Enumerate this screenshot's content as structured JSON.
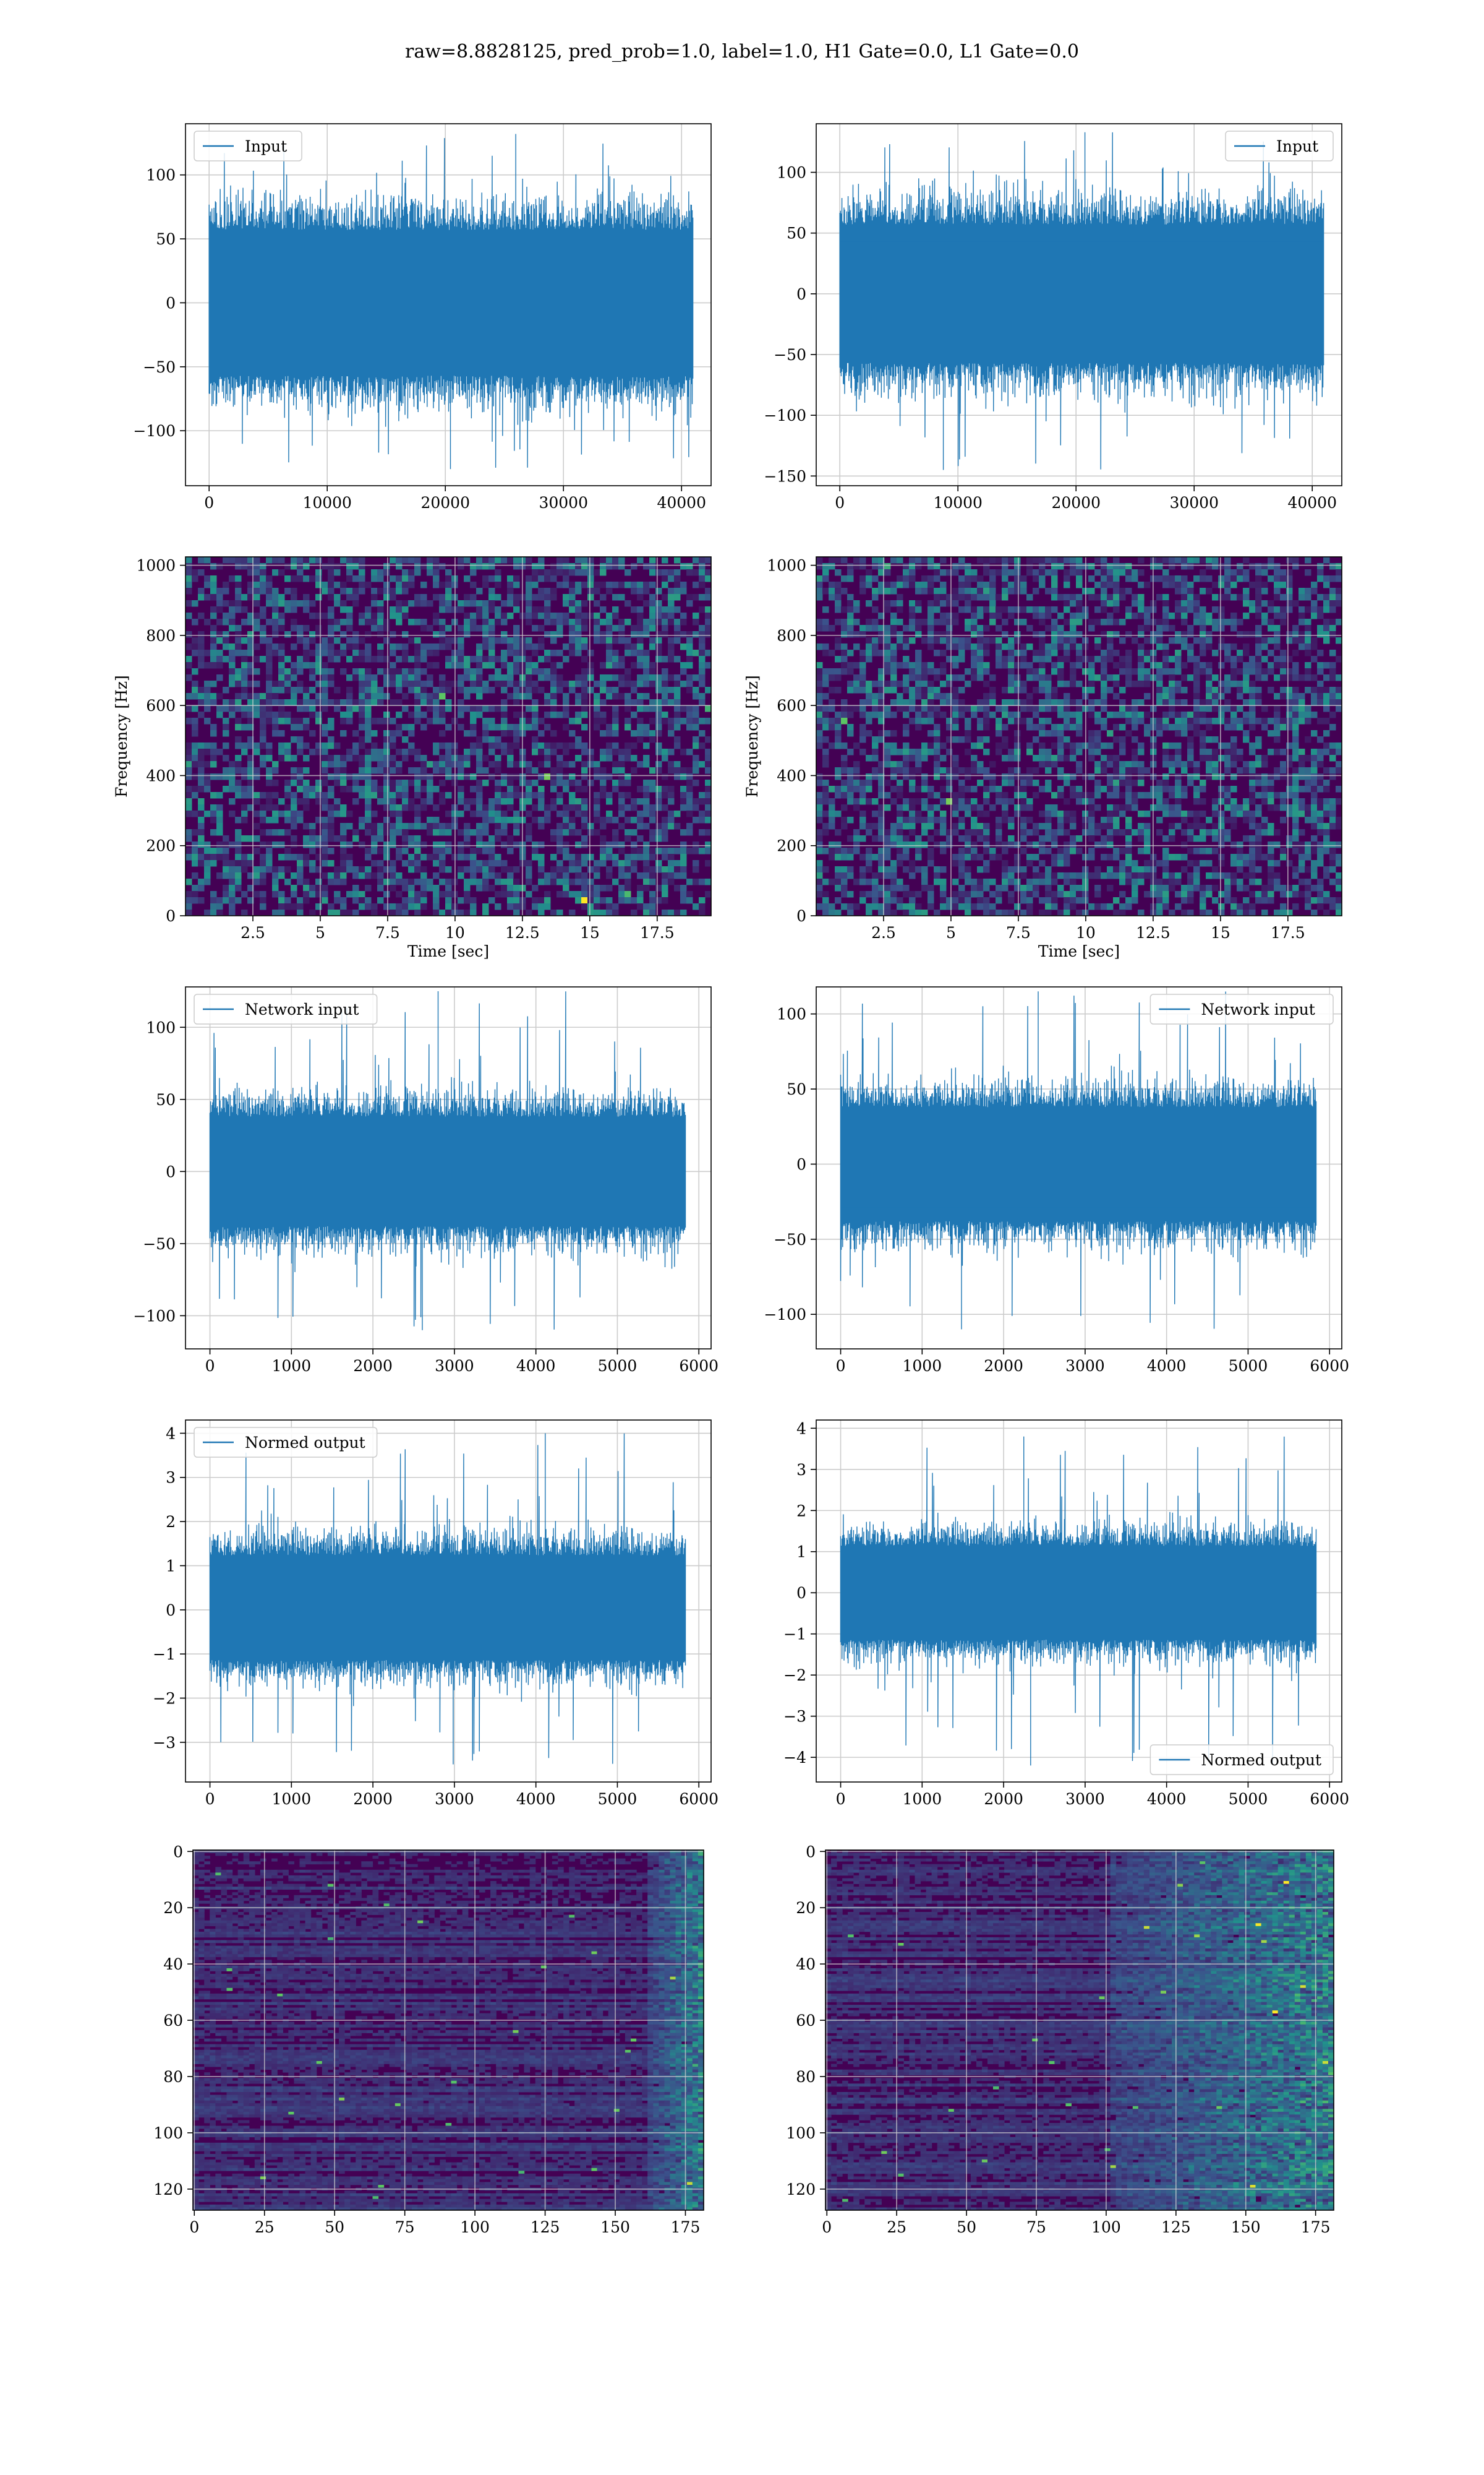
{
  "suptitle": "raw=8.8828125, pred_prob=1.0, label=1.0, H1 Gate=0.0, L1 Gate=0.0",
  "colors": {
    "line": "#1f77b4",
    "grid": "#cccccc",
    "viridis_low": "#440154",
    "viridis_high": "#fde725"
  },
  "chart_data": [
    {
      "type": "line",
      "series": [
        {
          "name": "Input"
        }
      ],
      "xlim": [
        -2000,
        42500
      ],
      "ylim": [
        -143,
        140
      ],
      "xticks": [
        0,
        10000,
        20000,
        30000,
        40000
      ],
      "yticks": [
        -100,
        -50,
        0,
        50,
        100
      ],
      "n_samples": 40960,
      "envelope": [
        -60,
        60
      ],
      "extremes": [
        -130,
        132
      ],
      "xlabel": "",
      "ylabel": "",
      "legend": "upper left",
      "grid": true
    },
    {
      "type": "line",
      "series": [
        {
          "name": "Input"
        }
      ],
      "xlim": [
        -2000,
        42500
      ],
      "ylim": [
        -158,
        140
      ],
      "xticks": [
        0,
        10000,
        20000,
        30000,
        40000
      ],
      "yticks": [
        -150,
        -100,
        -50,
        0,
        50,
        100
      ],
      "n_samples": 40960,
      "envelope": [
        -60,
        60
      ],
      "extremes": [
        -145,
        133
      ],
      "xlabel": "",
      "ylabel": "",
      "legend": "upper right",
      "grid": true
    },
    {
      "type": "heatmap",
      "xlim": [
        0,
        19.5
      ],
      "ylim": [
        0,
        1024
      ],
      "xticks": [
        2.5,
        5.0,
        7.5,
        10.0,
        12.5,
        15.0,
        17.5
      ],
      "yticks": [
        0,
        200,
        400,
        600,
        800,
        1000
      ],
      "xlabel": "Time [sec]",
      "ylabel": "Frequency [Hz]",
      "colormap": "viridis",
      "grid": true
    },
    {
      "type": "heatmap",
      "xlim": [
        0,
        19.5
      ],
      "ylim": [
        0,
        1024
      ],
      "xticks": [
        2.5,
        5.0,
        7.5,
        10.0,
        12.5,
        15.0,
        17.5
      ],
      "yticks": [
        0,
        200,
        400,
        600,
        800,
        1000
      ],
      "xlabel": "Time [sec]",
      "ylabel": "Frequency [Hz]",
      "colormap": "viridis",
      "grid": true
    },
    {
      "type": "line",
      "series": [
        {
          "name": "Network input"
        }
      ],
      "xlim": [
        -300,
        6150
      ],
      "ylim": [
        -123,
        128
      ],
      "xticks": [
        0,
        1000,
        2000,
        3000,
        4000,
        5000,
        6000
      ],
      "yticks": [
        -100,
        -50,
        0,
        50,
        100
      ],
      "n_samples": 5835,
      "envelope": [
        -40,
        40
      ],
      "extremes": [
        -110,
        125
      ],
      "xlabel": "",
      "ylabel": "",
      "legend": "upper left",
      "grid": true
    },
    {
      "type": "line",
      "series": [
        {
          "name": "Network input"
        }
      ],
      "xlim": [
        -300,
        6150
      ],
      "ylim": [
        -123,
        118
      ],
      "xticks": [
        0,
        1000,
        2000,
        3000,
        4000,
        5000,
        6000
      ],
      "yticks": [
        -100,
        -50,
        0,
        50,
        100
      ],
      "n_samples": 5835,
      "envelope": [
        -40,
        40
      ],
      "extremes": [
        -110,
        115
      ],
      "xlabel": "",
      "ylabel": "",
      "legend": "upper right",
      "grid": true
    },
    {
      "type": "line",
      "series": [
        {
          "name": "Normed output"
        }
      ],
      "xlim": [
        -300,
        6150
      ],
      "ylim": [
        -3.9,
        4.3
      ],
      "xticks": [
        0,
        1000,
        2000,
        3000,
        4000,
        5000,
        6000
      ],
      "yticks": [
        -3,
        -2,
        -1,
        0,
        1,
        2,
        3,
        4
      ],
      "n_samples": 5835,
      "envelope": [
        -1.2,
        1.3
      ],
      "extremes": [
        -3.5,
        4.0
      ],
      "xlabel": "",
      "ylabel": "",
      "legend": "upper left",
      "grid": true
    },
    {
      "type": "line",
      "series": [
        {
          "name": "Normed output"
        }
      ],
      "xlim": [
        -300,
        6150
      ],
      "ylim": [
        -4.6,
        4.2
      ],
      "xticks": [
        0,
        1000,
        2000,
        3000,
        4000,
        5000,
        6000
      ],
      "yticks": [
        -4,
        -3,
        -2,
        -1,
        0,
        1,
        2,
        3,
        4
      ],
      "n_samples": 5835,
      "envelope": [
        -1.2,
        1.2
      ],
      "extremes": [
        -4.2,
        3.8
      ],
      "xlabel": "",
      "ylabel": "",
      "legend": "lower right",
      "grid": true
    },
    {
      "type": "heatmap",
      "xlim": [
        -0.5,
        181.5
      ],
      "ylim": [
        127.5,
        -0.5
      ],
      "rows": 128,
      "cols": 182,
      "xticks": [
        0,
        25,
        50,
        75,
        100,
        125,
        150,
        175
      ],
      "yticks": [
        0,
        20,
        40,
        60,
        80,
        100,
        120
      ],
      "xlabel": "",
      "ylabel": "",
      "colormap": "viridis",
      "grid": true,
      "hot_columns": [
        160,
        182
      ]
    },
    {
      "type": "heatmap",
      "xlim": [
        -0.5,
        181.5
      ],
      "ylim": [
        127.5,
        -0.5
      ],
      "rows": 128,
      "cols": 182,
      "xticks": [
        0,
        25,
        50,
        75,
        100,
        125,
        150,
        175
      ],
      "yticks": [
        0,
        20,
        40,
        60,
        80,
        100,
        120
      ],
      "xlabel": "",
      "ylabel": "",
      "colormap": "viridis",
      "grid": true,
      "hot_columns": [
        100,
        182
      ]
    }
  ]
}
